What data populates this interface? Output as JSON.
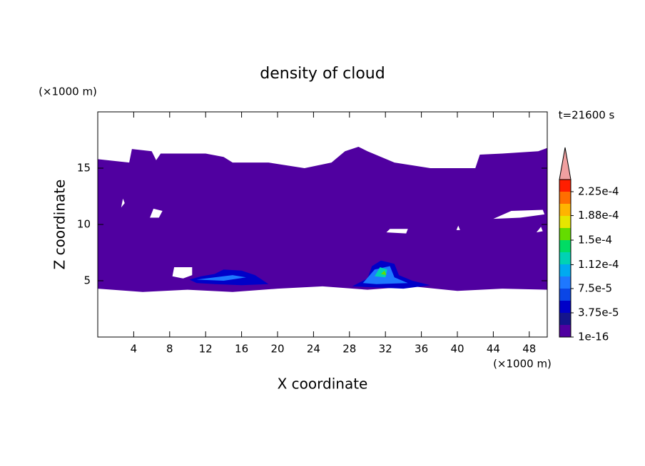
{
  "chart_data": {
    "type": "contour",
    "title": "density of cloud",
    "xlabel": "X coordinate",
    "ylabel": "Z coordinate",
    "x_unit": "(×1000 m)",
    "y_unit": "(×1000 m)",
    "annotation": "t=21600 s",
    "xlim": [
      0,
      50
    ],
    "ylim": [
      0,
      20
    ],
    "xticks": [
      4,
      8,
      12,
      16,
      20,
      24,
      28,
      32,
      36,
      40,
      44,
      48
    ],
    "yticks": [
      5,
      10,
      15
    ],
    "colorbar": {
      "clim": [
        1e-16,
        0.00024375
      ],
      "ticks": [
        {
          "value": 1e-16,
          "label": "1e-16"
        },
        {
          "value": 3.75e-05,
          "label": "3.75e-5"
        },
        {
          "value": 7.5e-05,
          "label": "7.5e-5"
        },
        {
          "value": 0.000112,
          "label": "1.12e-4"
        },
        {
          "value": 0.00015,
          "label": "1.5e-4"
        },
        {
          "value": 0.000188,
          "label": "1.88e-4"
        },
        {
          "value": 0.000225,
          "label": "2.25e-4"
        }
      ],
      "colors": [
        "#5000a0",
        "#14148c",
        "#0000c8",
        "#0a46e6",
        "#1e78ff",
        "#00aaf0",
        "#00d2b4",
        "#00dc64",
        "#64dc00",
        "#e6e600",
        "#ffb400",
        "#ff6e00",
        "#ff1e00"
      ],
      "extend_color": "#f0a0a0"
    },
    "regions": [
      {
        "level": 0,
        "x": [
          0,
          3.5,
          3.8,
          6,
          6.5,
          7,
          12,
          14,
          15,
          19,
          23,
          26,
          27.5,
          29,
          30,
          33,
          37,
          42,
          42.5,
          45,
          49,
          50,
          50,
          45,
          40,
          35,
          30,
          25,
          20,
          15,
          10,
          5,
          0,
          null,
          5.8,
          6.8,
          7.2,
          6.2,
          null,
          8.3,
          8.5,
          10.5,
          10.5,
          9.5,
          null,
          2.6,
          3,
          2.8,
          null,
          44,
          46,
          49.5,
          49.7,
          47,
          null,
          48.8,
          49.5,
          49.3,
          null,
          32.1,
          34.3,
          34.5,
          32.5,
          null,
          39.9,
          40.3,
          40.1
        ],
        "z": [
          15.8,
          15.5,
          16.7,
          16.5,
          15.7,
          16.3,
          16.3,
          16,
          15.5,
          15.5,
          15,
          15.5,
          16.5,
          16.9,
          16.5,
          15.5,
          15,
          15,
          16.2,
          16.3,
          16.5,
          16.8,
          4.2,
          4.3,
          4.1,
          4.5,
          4.2,
          4.5,
          4.3,
          4,
          4.2,
          4,
          4.3,
          null,
          10.6,
          10.6,
          11.2,
          11.4,
          null,
          5.4,
          6.2,
          6.2,
          5.5,
          5.2,
          null,
          11.5,
          11.9,
          12.3,
          null,
          10.5,
          11.2,
          11.3,
          10.9,
          10.6,
          null,
          9.3,
          9.4,
          9.8,
          null,
          9.3,
          9.2,
          9.6,
          9.6,
          null,
          9.5,
          9.5,
          9.9
        ]
      },
      {
        "level": 2,
        "x": [
          10.2,
          11.5,
          13,
          14,
          16,
          17.5,
          19,
          16,
          13,
          11,
          null,
          28.3,
          30,
          30.5,
          31.5,
          33,
          33.5,
          35,
          37,
          34,
          31
        ],
        "z": [
          5.1,
          5.4,
          5.6,
          6,
          5.9,
          5.5,
          4.7,
          4.6,
          4.7,
          4.8,
          null,
          4.5,
          5.2,
          6.3,
          6.8,
          6.5,
          5.5,
          5,
          4.6,
          4.3,
          4.4
        ]
      },
      {
        "level": 4,
        "x": [
          11,
          13,
          15,
          16.5,
          14,
          null,
          29.5,
          30.8,
          32.5,
          33,
          34.5,
          31
        ],
        "z": [
          5.1,
          5.3,
          5.5,
          5.3,
          5,
          null,
          4.8,
          6,
          6.3,
          5.3,
          4.8,
          4.7
        ]
      },
      {
        "level": 6,
        "x": [
          30.8,
          31.4,
          32.2,
          32
        ],
        "z": [
          5.4,
          6.2,
          6,
          5.3
        ]
      },
      {
        "level": 8,
        "x": [
          31.5,
          31.9,
          32.1
        ],
        "z": [
          5.6,
          5.9,
          5.5
        ]
      }
    ]
  }
}
